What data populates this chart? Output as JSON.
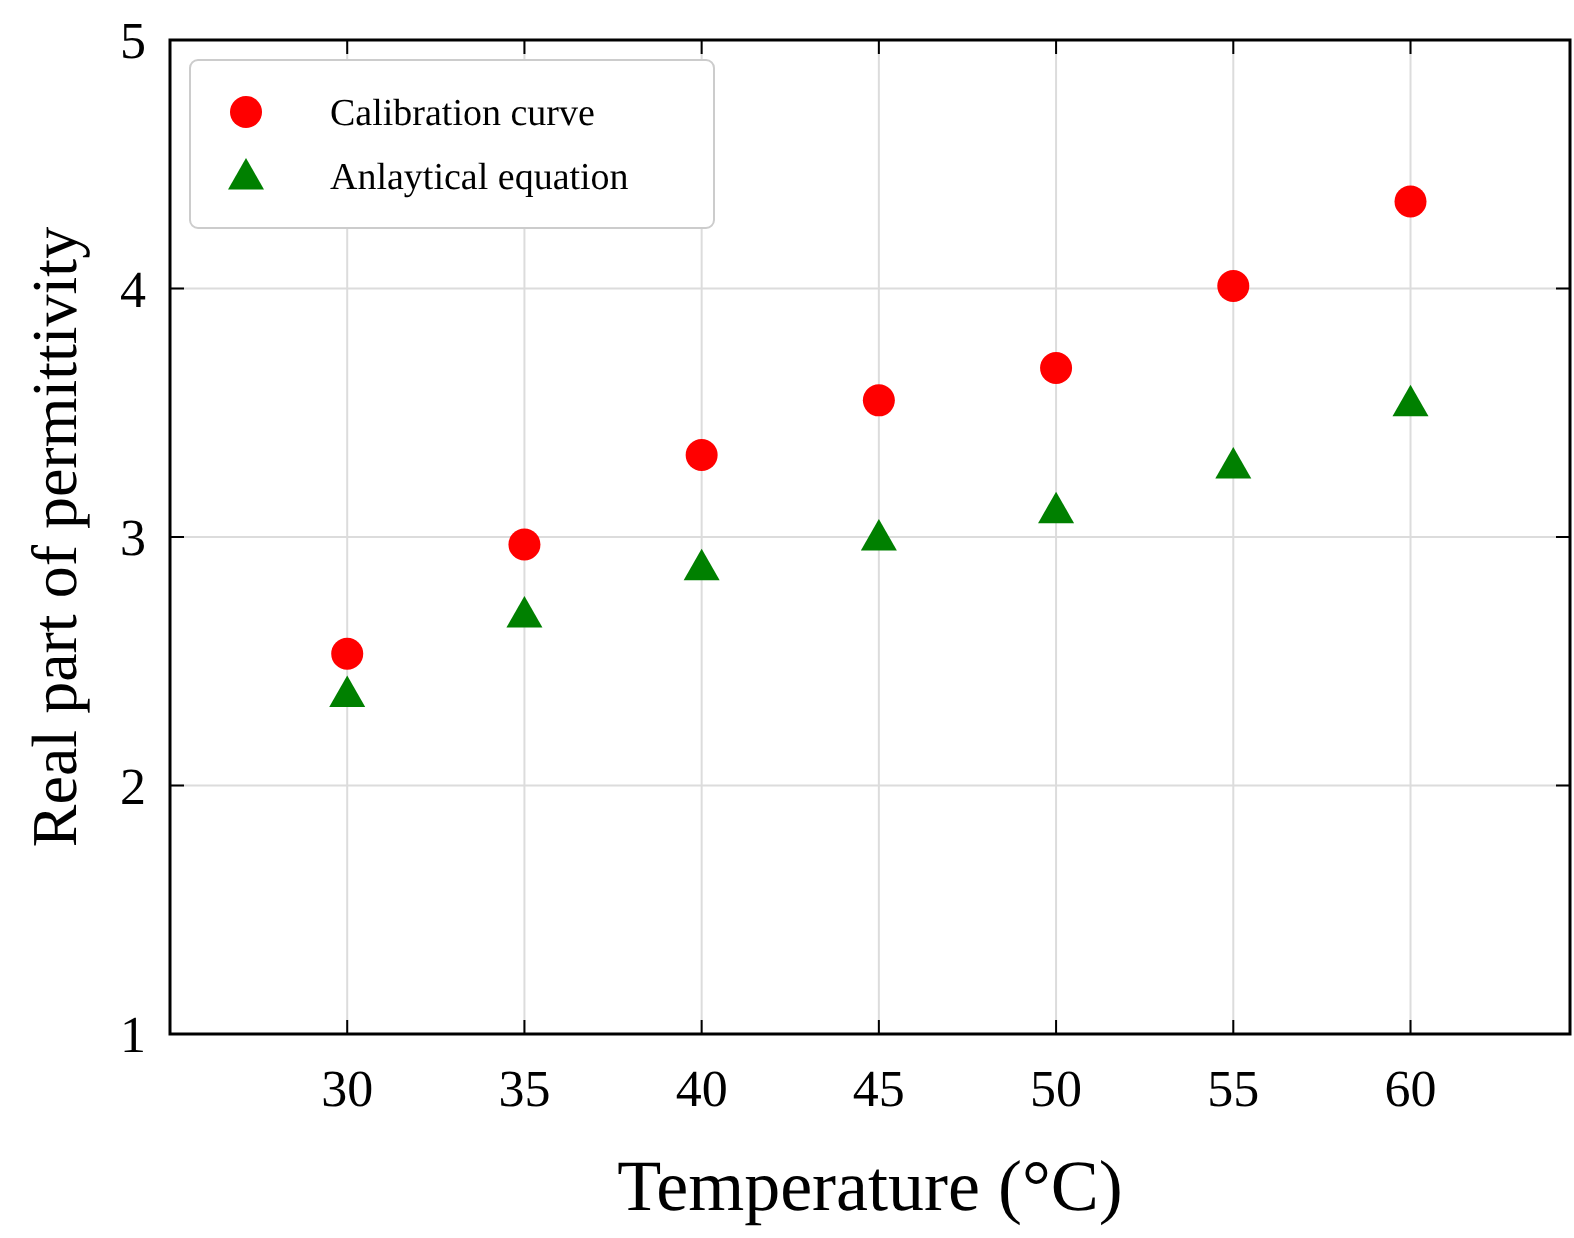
{
  "chart_data": {
    "type": "scatter",
    "xlabel": "Temperature (°C)",
    "ylabel": "Real part of permittivity",
    "x": [
      30,
      35,
      40,
      45,
      50,
      55,
      60
    ],
    "series": [
      {
        "name": "Calibration curve",
        "color": "#ff0000",
        "marker": "circle",
        "values": [
          2.53,
          2.97,
          3.33,
          3.55,
          3.68,
          4.01,
          4.35
        ]
      },
      {
        "name": "Anlaytical equation",
        "color": "#008000",
        "marker": "triangle",
        "values": [
          2.37,
          2.69,
          2.88,
          3.0,
          3.11,
          3.29,
          3.54
        ]
      }
    ],
    "xlim": [
      25,
      64.5
    ],
    "xticks": [
      30,
      35,
      40,
      45,
      50,
      55,
      60
    ],
    "ylim": [
      1,
      5
    ],
    "yticks": [
      1,
      2,
      3,
      4,
      5
    ],
    "grid": true,
    "legend": "top left"
  }
}
